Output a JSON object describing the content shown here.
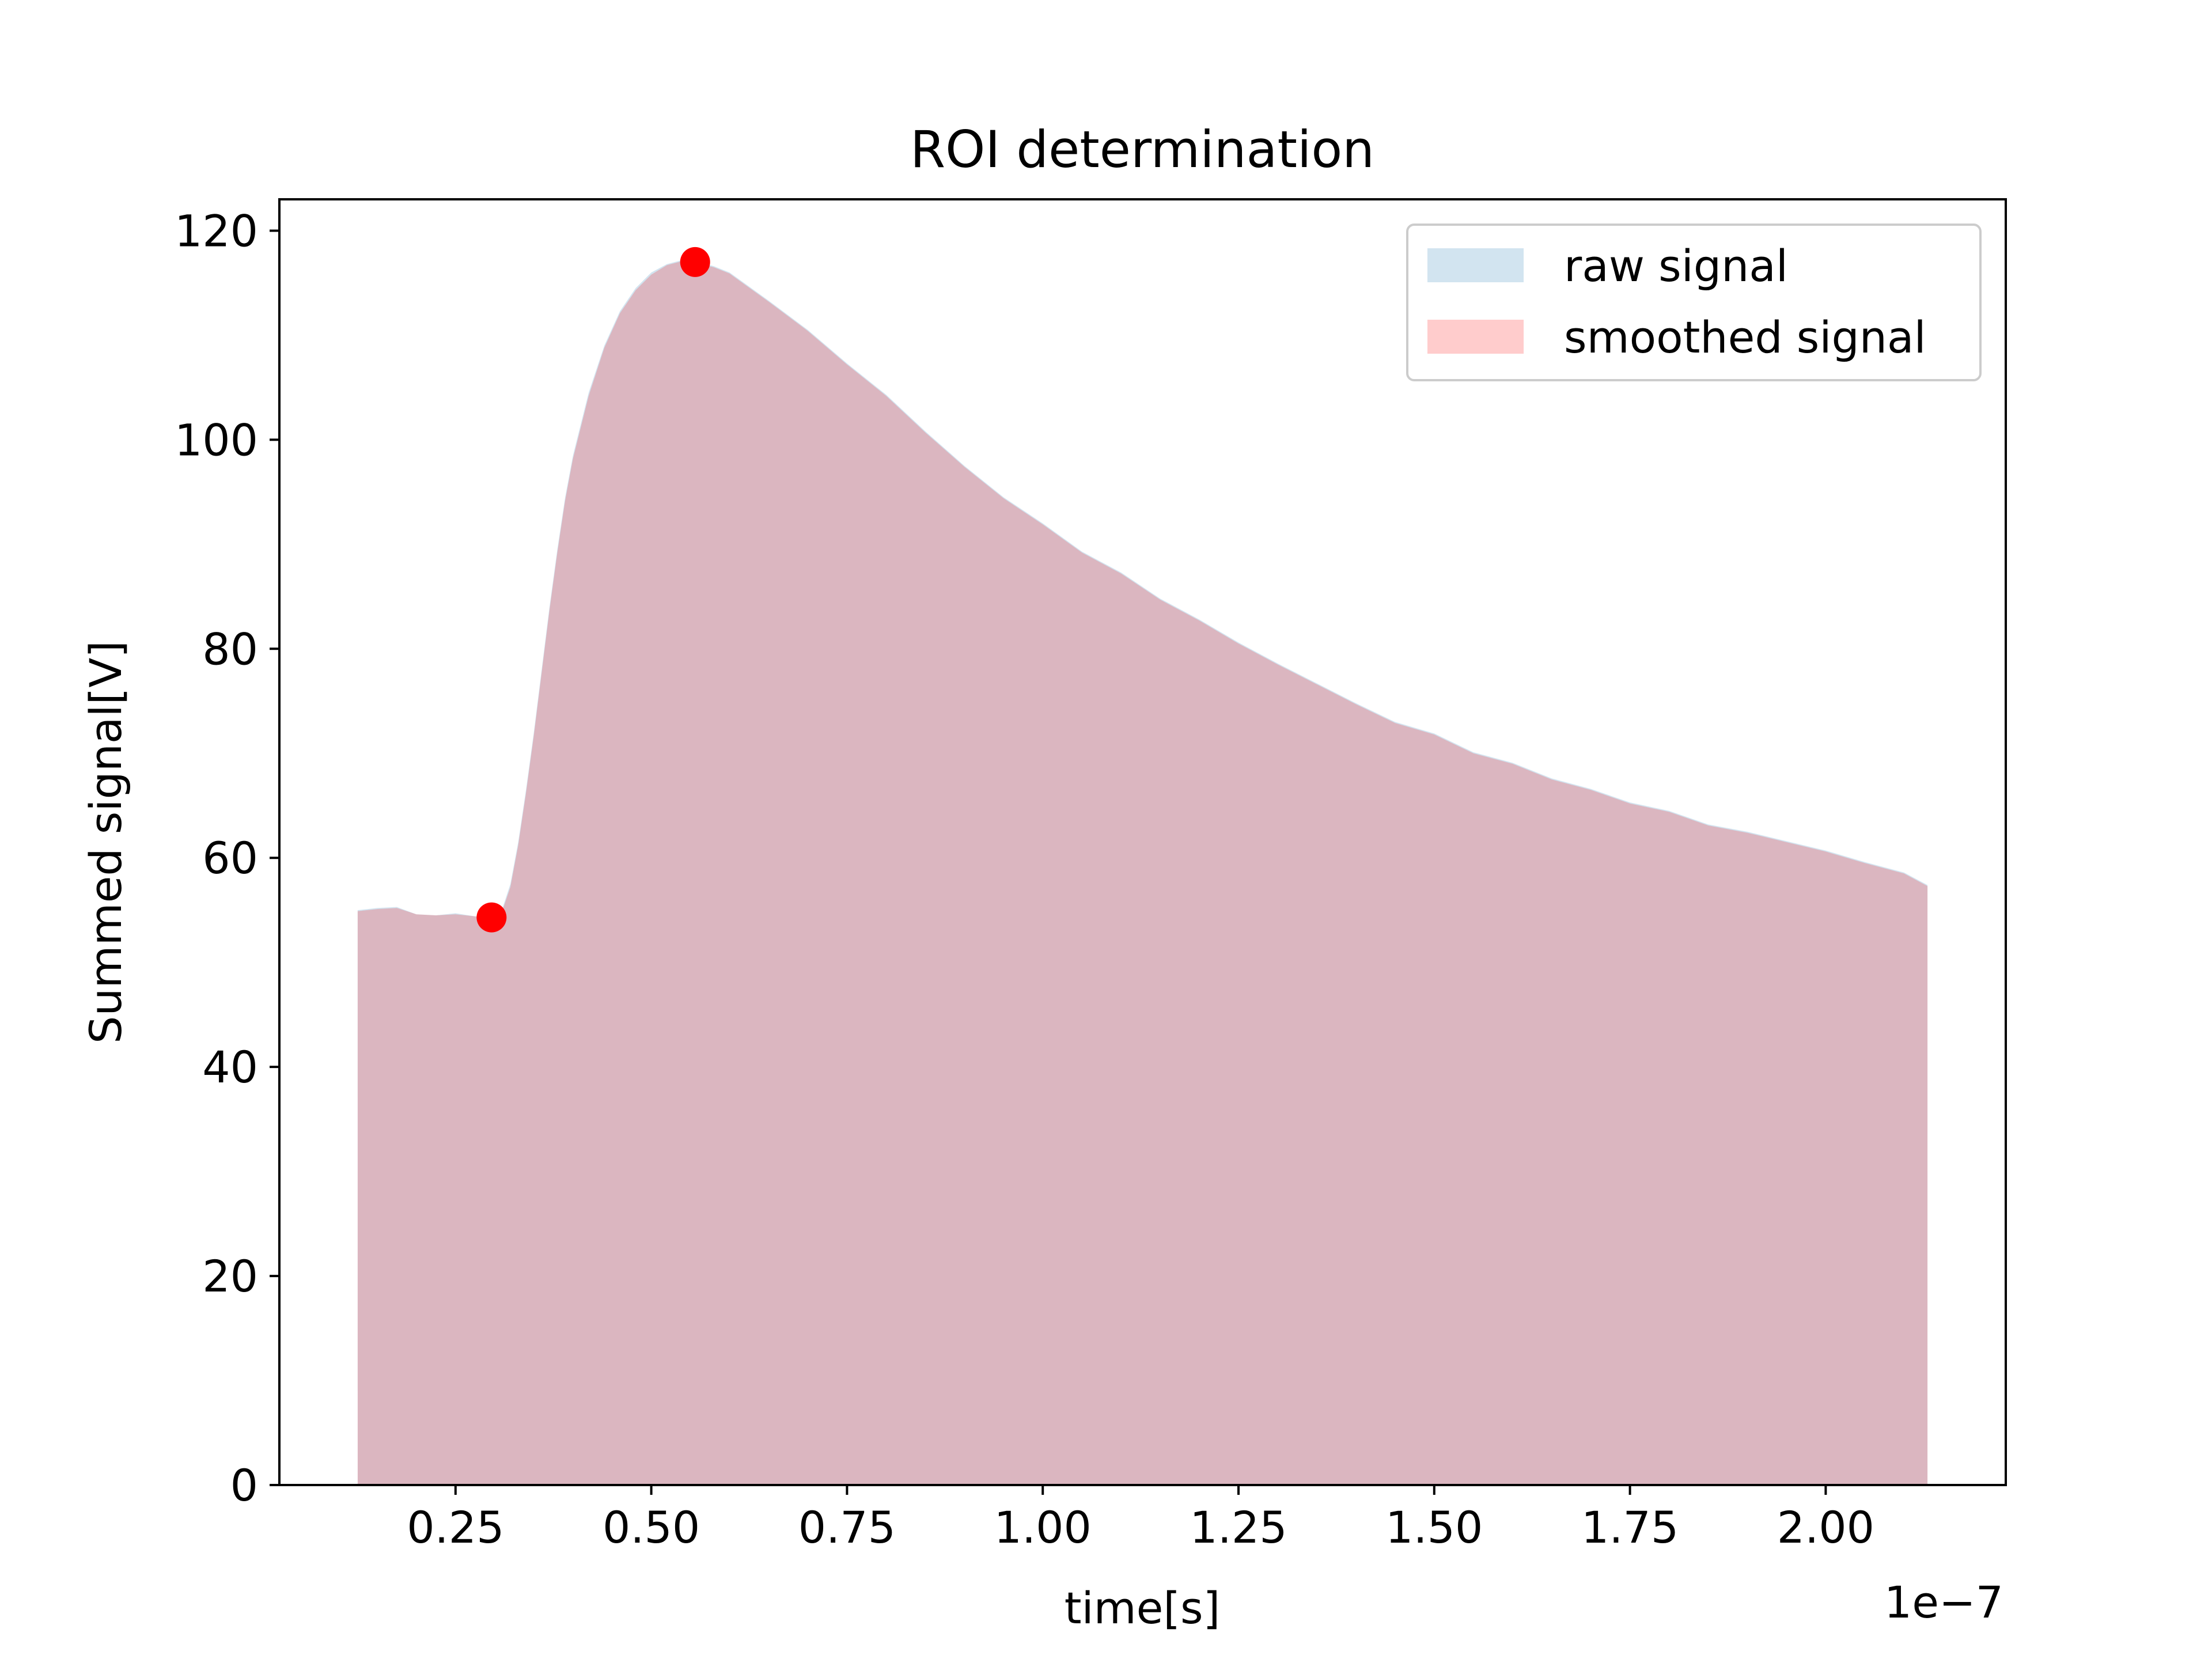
{
  "chart_data": {
    "type": "area",
    "title": "ROI determination",
    "xlabel": "time[s]",
    "ylabel": "Summed signal[V]",
    "x_offset_label": "1e−7",
    "xlim": [
      0.025,
      2.23
    ],
    "ylim": [
      0,
      123
    ],
    "grid": false,
    "legend_position": "top-right",
    "x_ticks": [
      0.25,
      0.5,
      0.75,
      1.0,
      1.25,
      1.5,
      1.75,
      2.0
    ],
    "x_tick_labels": [
      "0.25",
      "0.50",
      "0.75",
      "1.00",
      "1.25",
      "1.50",
      "1.75",
      "2.00"
    ],
    "y_ticks": [
      0,
      20,
      40,
      60,
      80,
      100,
      120
    ],
    "y_tick_labels": [
      "0",
      "20",
      "40",
      "60",
      "80",
      "100",
      "120"
    ],
    "series": [
      {
        "name": "raw signal",
        "color": "#1f77b4",
        "opacity": 0.2,
        "x": [
          0.125,
          0.15,
          0.175,
          0.2,
          0.225,
          0.25,
          0.275,
          0.3,
          0.31,
          0.32,
          0.33,
          0.34,
          0.35,
          0.36,
          0.37,
          0.38,
          0.39,
          0.4,
          0.42,
          0.44,
          0.46,
          0.48,
          0.5,
          0.52,
          0.54,
          0.56,
          0.58,
          0.6,
          0.65,
          0.7,
          0.75,
          0.8,
          0.85,
          0.9,
          0.95,
          1.0,
          1.05,
          1.1,
          1.15,
          1.2,
          1.25,
          1.3,
          1.35,
          1.4,
          1.45,
          1.5,
          1.55,
          1.6,
          1.65,
          1.7,
          1.75,
          1.8,
          1.85,
          1.9,
          1.95,
          2.0,
          2.05,
          2.1,
          2.13
        ],
        "values": [
          55.0,
          55.2,
          55.3,
          54.6,
          54.5,
          54.7,
          54.4,
          54.3,
          55.2,
          57.5,
          61.5,
          66.5,
          72.0,
          78.0,
          84.0,
          89.5,
          94.5,
          98.5,
          104.5,
          109.0,
          112.3,
          114.5,
          116.0,
          116.8,
          117.2,
          117.0,
          116.6,
          116.0,
          113.3,
          110.5,
          107.3,
          104.3,
          100.8,
          97.5,
          94.5,
          92.0,
          89.3,
          87.3,
          84.8,
          82.8,
          80.6,
          78.6,
          76.7,
          74.8,
          73.0,
          71.9,
          70.1,
          69.1,
          67.6,
          66.6,
          65.3,
          64.5,
          63.2,
          62.5,
          61.6,
          60.7,
          59.6,
          58.6,
          57.4
        ]
      },
      {
        "name": "smoothed signal",
        "color": "#ff0000",
        "opacity": 0.2,
        "x": [
          0.125,
          0.15,
          0.175,
          0.2,
          0.225,
          0.25,
          0.275,
          0.3,
          0.31,
          0.32,
          0.33,
          0.34,
          0.35,
          0.36,
          0.37,
          0.38,
          0.39,
          0.4,
          0.42,
          0.44,
          0.46,
          0.48,
          0.5,
          0.52,
          0.54,
          0.56,
          0.58,
          0.6,
          0.65,
          0.7,
          0.75,
          0.8,
          0.85,
          0.9,
          0.95,
          1.0,
          1.05,
          1.1,
          1.15,
          1.2,
          1.25,
          1.3,
          1.35,
          1.4,
          1.45,
          1.5,
          1.55,
          1.6,
          1.65,
          1.7,
          1.75,
          1.8,
          1.85,
          1.9,
          1.95,
          2.0,
          2.05,
          2.1,
          2.13
        ],
        "values": [
          54.9,
          55.1,
          55.2,
          54.6,
          54.5,
          54.6,
          54.4,
          54.3,
          55.0,
          57.2,
          61.2,
          66.2,
          71.7,
          77.7,
          83.7,
          89.2,
          94.2,
          98.2,
          104.2,
          108.8,
          112.1,
          114.3,
          115.8,
          116.7,
          117.1,
          116.9,
          116.5,
          115.9,
          113.2,
          110.4,
          107.2,
          104.2,
          100.7,
          97.4,
          94.4,
          91.9,
          89.2,
          87.2,
          84.7,
          82.7,
          80.5,
          78.5,
          76.6,
          74.7,
          72.9,
          71.8,
          70.0,
          69.0,
          67.5,
          66.5,
          65.2,
          64.4,
          63.1,
          62.4,
          61.5,
          60.6,
          59.5,
          58.5,
          57.3
        ]
      }
    ],
    "markers": {
      "color": "#ff0000",
      "points": [
        {
          "x": 0.296,
          "y": 54.3
        },
        {
          "x": 0.556,
          "y": 117.0
        }
      ]
    }
  }
}
